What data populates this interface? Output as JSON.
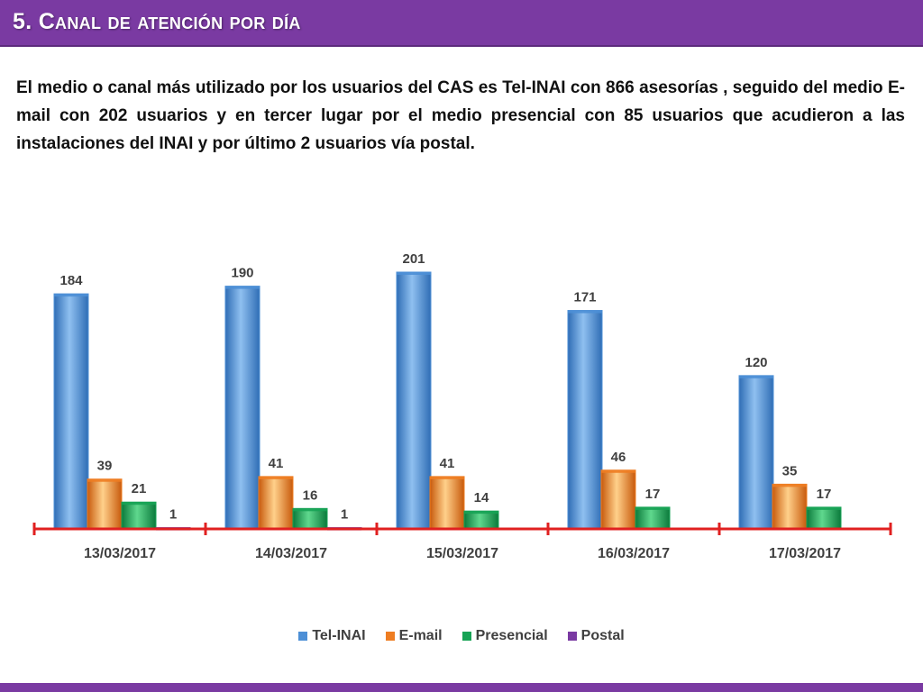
{
  "slide": {
    "title": "5. Canal de atención por día",
    "paragraph": "El medio o canal más utilizado por los usuarios del CAS es Tel-INAI con 866 asesorías , seguido del medio E-mail con 202 usuarios y en tercer lugar por el medio presencial con 85 usuarios que acudieron a las instalaciones del INAI y por último 2 usuarios vía postal."
  },
  "colors": {
    "title_bar": "#7a3aa2",
    "axis": "#e02020",
    "series": [
      "#4d8fd6",
      "#ee7d22",
      "#17a355",
      "#7a3aa2"
    ]
  },
  "chart_data": {
    "type": "bar",
    "categories": [
      "13/03/2017",
      "14/03/2017",
      "15/03/2017",
      "16/03/2017",
      "17/03/2017"
    ],
    "series": [
      {
        "name": "Tel-INAI",
        "values": [
          184,
          190,
          201,
          171,
          120
        ]
      },
      {
        "name": "E-mail",
        "values": [
          39,
          41,
          41,
          46,
          35
        ]
      },
      {
        "name": "Presencial",
        "values": [
          21,
          16,
          14,
          17,
          17
        ]
      },
      {
        "name": "Postal",
        "values": [
          1,
          1,
          0,
          0,
          0
        ]
      }
    ],
    "data_labels": [
      [
        "184",
        "39",
        "21",
        "1"
      ],
      [
        "190",
        "41",
        "16",
        "1"
      ],
      [
        "201",
        "41",
        "14",
        ""
      ],
      [
        "171",
        "46",
        "17",
        ""
      ],
      [
        "120",
        "35",
        "17",
        ""
      ]
    ],
    "ylim": [
      0,
      201
    ],
    "legend_position": "bottom",
    "grid": false
  }
}
